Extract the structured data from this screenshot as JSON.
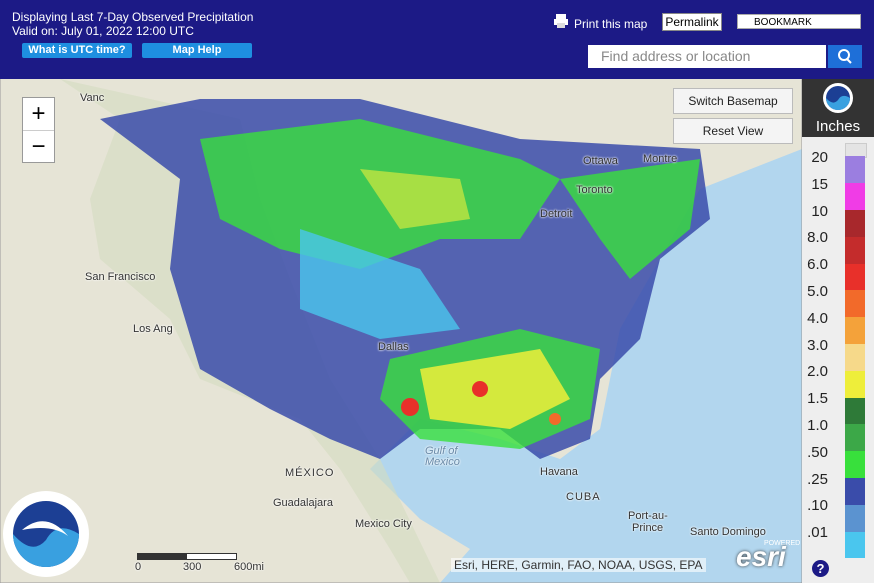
{
  "header": {
    "title": "Displaying Last 7-Day Observed Precipitation",
    "valid": "Valid on: July 01, 2022 12:00 UTC",
    "buttons": [
      "What is UTC time?",
      "Map Help"
    ],
    "print": "Print this map",
    "permalink": "Permalink",
    "bookmark": "BOOKMARK",
    "search_placeholder": "Find address or location"
  },
  "map": {
    "buttons": [
      "Switch Basemap",
      "Reset View"
    ],
    "zoom": [
      "+",
      "−"
    ],
    "labels": [
      "Vanc",
      "San Francisco",
      "Los Ang",
      "Ottawa",
      "Montre",
      "Toronto",
      "Detroit",
      "Dallas",
      "Gulf of",
      "Mexico",
      "MÉXICO",
      "Guadalajara",
      "Mexico City",
      "Havana",
      "CUBA",
      "Port-au-",
      "Prince",
      "Santo Domingo"
    ],
    "scale": [
      "0",
      "300",
      "600mi"
    ],
    "attribution": "Esri, HERE, Garmin, FAO, NOAA, USGS, EPA",
    "esri_tag": "POWERED BY",
    "esri": "esri"
  },
  "legend": {
    "unit": "Inches",
    "items": [
      {
        "label": "20",
        "color": "#9b7ee0"
      },
      {
        "label": "15",
        "color": "#f03ce6"
      },
      {
        "label": "10",
        "color": "#a8282c"
      },
      {
        "label": "8.0",
        "color": "#c42c2c"
      },
      {
        "label": "6.0",
        "color": "#e8302a"
      },
      {
        "label": "5.0",
        "color": "#f26a2a"
      },
      {
        "label": "4.0",
        "color": "#f4a23a"
      },
      {
        "label": "3.0",
        "color": "#f6d98a"
      },
      {
        "label": "2.0",
        "color": "#eeee3a"
      },
      {
        "label": "1.5",
        "color": "#2e7a38"
      },
      {
        "label": "1.0",
        "color": "#3ca848"
      },
      {
        "label": ".50",
        "color": "#38e03c"
      },
      {
        "label": ".25",
        "color": "#3a4caa"
      },
      {
        "label": ".10",
        "color": "#5b93d0"
      },
      {
        "label": ".01",
        "color": "#4ac6ee"
      }
    ],
    "help": "?"
  }
}
